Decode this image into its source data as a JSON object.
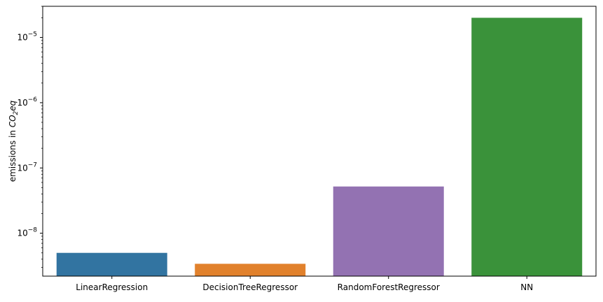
{
  "chart_data": {
    "type": "bar",
    "categories": [
      "LinearRegression",
      "DecisionTreeRegressor",
      "RandomForestRegressor",
      "NN"
    ],
    "values": [
      5e-09,
      3.4e-09,
      5.2e-08,
      2e-05
    ],
    "colors": [
      "#3274a1",
      "#e1812c",
      "#9372b2",
      "#3a923a"
    ],
    "ylabel": "emissions in CO₂eq",
    "ylabel_plain": "emissions in ",
    "ylabel_math": {
      "base": "CO",
      "sub": "2",
      "tail": "eq"
    },
    "yscale": "log",
    "ylim": [
      2.2e-09,
      3e-05
    ],
    "yticks": [
      {
        "value": 1e-08,
        "base": "10",
        "exp": "−8"
      },
      {
        "value": 1e-07,
        "base": "10",
        "exp": "−7"
      },
      {
        "value": 1e-06,
        "base": "10",
        "exp": "−6"
      },
      {
        "value": 1e-05,
        "base": "10",
        "exp": "−5"
      }
    ],
    "grid": false,
    "legend": "none"
  }
}
